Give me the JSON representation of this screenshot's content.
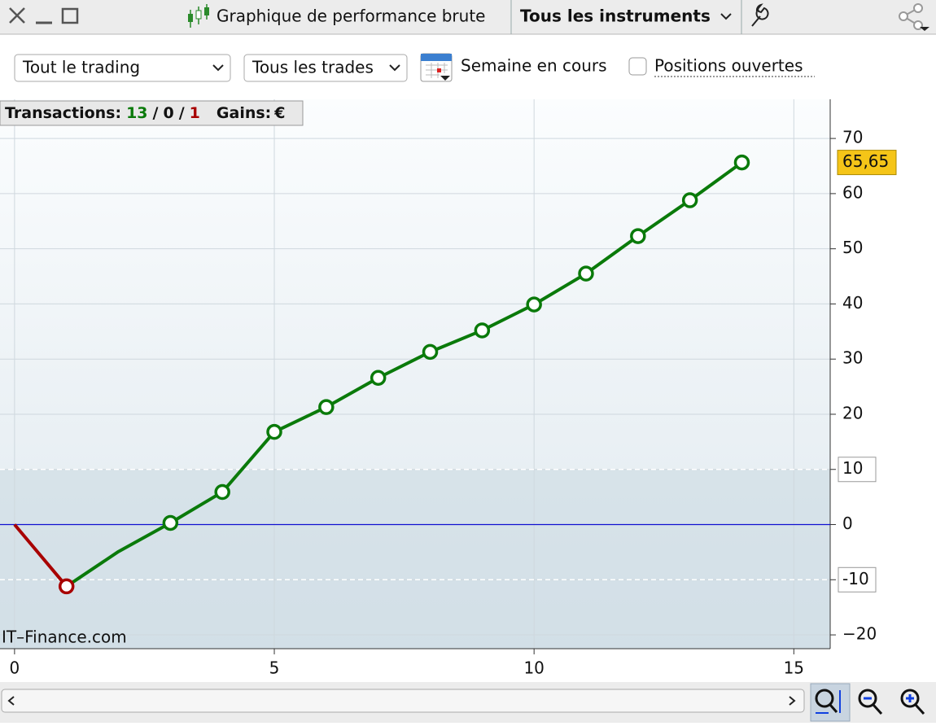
{
  "window": {
    "title": "Graphique de performance brute",
    "instrument": "Tous les instruments"
  },
  "toolbar": {
    "scope": "Tout le trading",
    "trades": "Tous les trades",
    "period": "Semaine en cours",
    "open_positions": "Positions ouvertes"
  },
  "stats": {
    "transactions_label": "Transactions:",
    "wins": 13,
    "separator": "/",
    "neutral": 0,
    "losses": 1,
    "gains_label": "Gains:",
    "currency": "€"
  },
  "watermark": "IT–Finance.com",
  "chart_data": {
    "type": "line",
    "xlim": [
      -0.28,
      15.7
    ],
    "xticks": [
      0,
      5,
      10,
      15
    ],
    "ylim": [
      -22.5,
      77.1
    ],
    "yticks": [
      70,
      60,
      50,
      40,
      30,
      20,
      10,
      0,
      -10,
      {
        "value": -20,
        "label": "−20"
      }
    ],
    "grid": true,
    "reference_lines": [
      10,
      -10
    ],
    "zero_line_color": "#1010d0",
    "series": [
      {
        "color": "#a80000",
        "x": [
          0,
          1
        ],
        "values": [
          0,
          -11.2
        ],
        "markers": [
          false,
          true
        ],
        "value_labels": [
          null,
          null
        ]
      },
      {
        "color": "#0a7a0a",
        "x": [
          1,
          2,
          3,
          4,
          5,
          6,
          7,
          8,
          9,
          10,
          11,
          12,
          13,
          14
        ],
        "values": [
          -11.2,
          -4.9,
          0.3,
          5.9,
          16.8,
          21.3,
          26.6,
          31.3,
          35.2,
          39.9,
          45.5,
          52.3,
          58.8,
          65.65
        ],
        "markers": [
          false,
          false,
          true,
          true,
          true,
          true,
          true,
          true,
          true,
          true,
          true,
          true,
          true,
          true
        ],
        "value_labels": [
          null,
          null,
          null,
          null,
          null,
          null,
          null,
          null,
          null,
          null,
          null,
          null,
          null,
          "65,65"
        ]
      }
    ]
  }
}
